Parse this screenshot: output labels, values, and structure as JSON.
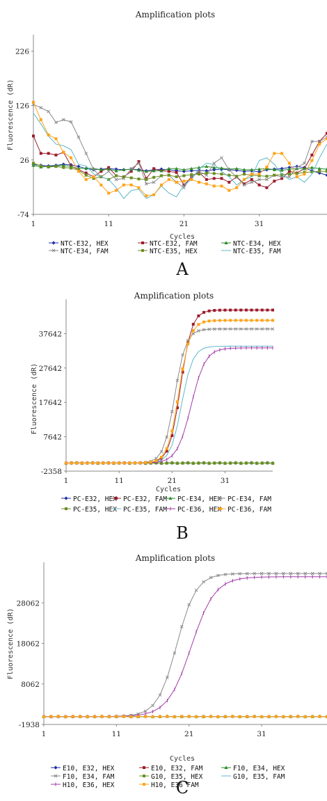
{
  "colors": {
    "blue": "#1f2ea8",
    "darkred": "#9b1c2c",
    "green": "#2e8b2e",
    "gray": "#8a8a8a",
    "olive": "#6b8e23",
    "teal": "#5fb8c9",
    "purple": "#a23ba7",
    "orange": "#ffa31a"
  },
  "chart_data": [
    {
      "type": "line",
      "title": "Amplification plots",
      "xlabel": "Cycles",
      "ylabel": "Fluorescence (dR)",
      "panel_label": "A",
      "xlim": [
        1,
        40
      ],
      "ylim": [
        -74,
        256
      ],
      "xticks": [
        1,
        11,
        21,
        31
      ],
      "yticks": [
        -74,
        26,
        126,
        226
      ],
      "series": [
        {
          "name": "NTC-E32, HEX",
          "color": "#1f2ea8",
          "marker": "diamond",
          "values": [
            18,
            16,
            15,
            16,
            18,
            17,
            14,
            10,
            8,
            9,
            10,
            9,
            8,
            9,
            8,
            6,
            8,
            9,
            8,
            6,
            5,
            6,
            7,
            6,
            8,
            9,
            8,
            7,
            5,
            6,
            4,
            8,
            9,
            10,
            12,
            14,
            12,
            6,
            2,
            -2
          ]
        },
        {
          "name": "NTC-E32, FAM",
          "color": "#9b1c2c",
          "marker": "square",
          "values": [
            70,
            38,
            38,
            35,
            40,
            15,
            8,
            2,
            -5,
            5,
            12,
            -3,
            -5,
            5,
            23,
            -8,
            10,
            6,
            5,
            3,
            -20,
            -5,
            3,
            -10,
            -8,
            -8,
            -15,
            -5,
            -18,
            -10,
            -20,
            -25,
            -13,
            -8,
            5,
            2,
            10,
            35,
            60,
            75
          ]
        },
        {
          "name": "NTC-E34, HEX",
          "color": "#2e8b2e",
          "marker": "triangle",
          "values": [
            16,
            13,
            14,
            15,
            16,
            14,
            10,
            11,
            10,
            8,
            9,
            6,
            8,
            9,
            7,
            5,
            6,
            6,
            10,
            10,
            8,
            10,
            12,
            14,
            12,
            11,
            9,
            10,
            8,
            8,
            9,
            10,
            8,
            7,
            9,
            10,
            10,
            12,
            10,
            9
          ]
        },
        {
          "name": "NTC-E34, FAM",
          "color": "#8a8a8a",
          "marker": "x",
          "values": [
            128,
            122,
            115,
            95,
            100,
            96,
            68,
            38,
            8,
            -5,
            5,
            -10,
            -8,
            10,
            20,
            -18,
            -15,
            -3,
            -2,
            -15,
            -25,
            -5,
            5,
            -2,
            20,
            30,
            8,
            -6,
            -20,
            -15,
            -10,
            -10,
            -2,
            -5,
            -5,
            12,
            20,
            60,
            60,
            68
          ]
        },
        {
          "name": "NTC-E35, HEX",
          "color": "#6b8e23",
          "marker": "square",
          "values": [
            20,
            15,
            13,
            14,
            12,
            11,
            7,
            -2,
            -8,
            -5,
            -10,
            -3,
            -5,
            -7,
            -9,
            -10,
            -6,
            -3,
            -2,
            -5,
            -3,
            -1,
            0,
            2,
            1,
            0,
            -2,
            -4,
            0,
            -2,
            -3,
            -4,
            -2,
            -1,
            0,
            1,
            3,
            4,
            5,
            5
          ]
        },
        {
          "name": "NTC-E35, FAM",
          "color": "#5fb8c9",
          "marker": "none",
          "values": [
            112,
            92,
            70,
            55,
            52,
            45,
            18,
            15,
            0,
            -5,
            -10,
            -25,
            -45,
            -30,
            -28,
            -45,
            -38,
            -22,
            -35,
            -42,
            -20,
            -10,
            10,
            20,
            18,
            5,
            -5,
            -20,
            -10,
            -5,
            25,
            30,
            18,
            0,
            -10,
            -5,
            -15,
            0,
            30,
            55
          ]
        },
        {
          "name": "NTC-E35, FAM (orange)",
          "legend": false,
          "color": "#ffa31a",
          "marker": "square",
          "values": [
            132,
            100,
            72,
            65,
            40,
            30,
            5,
            -10,
            -5,
            -20,
            -35,
            -30,
            -20,
            -20,
            -25,
            -40,
            -38,
            -20,
            -10,
            -15,
            -13,
            -10,
            -15,
            -18,
            -22,
            -22,
            -30,
            -25,
            -10,
            0,
            0,
            13,
            38,
            38,
            20,
            -5,
            0,
            25,
            55,
            65
          ]
        }
      ],
      "legend": [
        "NTC-E32, HEX",
        "NTC-E32, FAM",
        "NTC-E34, HEX",
        "NTC-E34, FAM",
        "NTC-E35, HEX",
        "NTC-E35, FAM"
      ],
      "legend_colors": [
        "#1f2ea8",
        "#9b1c2c",
        "#2e8b2e",
        "#8a8a8a",
        "#6b8e23",
        "#5fb8c9"
      ],
      "grid": false
    },
    {
      "type": "line",
      "title": "Amplification plots",
      "xlabel": "Cycles",
      "ylabel": "Fluorescence (dR)",
      "panel_label": "B",
      "xlim": [
        1,
        40
      ],
      "ylim": [
        -2358,
        47642
      ],
      "xticks": [
        1,
        11,
        21,
        31
      ],
      "yticks": [
        -2358,
        7642,
        17642,
        27642,
        37642
      ],
      "series": [
        {
          "name": "PC-E32, HEX",
          "color": "#1f2ea8",
          "marker": "diamond",
          "sigmoid": {
            "plateau": 0,
            "mid": 22,
            "k": 0.7
          }
        },
        {
          "name": "PC-E32, FAM",
          "color": "#9b1c2c",
          "marker": "square",
          "sigmoid": {
            "plateau": 44500,
            "mid": 22.6,
            "k": 0.95
          }
        },
        {
          "name": "PC-E34, HEX",
          "color": "#2e8b2e",
          "marker": "triangle",
          "sigmoid": {
            "plateau": 0,
            "mid": 22,
            "k": 0.7
          }
        },
        {
          "name": "PC-E34, FAM",
          "color": "#8a8a8a",
          "marker": "x",
          "sigmoid": {
            "plateau": 39000,
            "mid": 21.5,
            "k": 0.95
          }
        },
        {
          "name": "PC-E35, HEX",
          "color": "#6b8e23",
          "marker": "square",
          "sigmoid": {
            "plateau": 0,
            "mid": 22,
            "k": 0.7
          }
        },
        {
          "name": "PC-E35, FAM",
          "color": "#5fb8c9",
          "marker": "none",
          "sigmoid": {
            "plateau": 34000,
            "mid": 22.8,
            "k": 0.95
          }
        },
        {
          "name": "PC-E36, HEX",
          "color": "#a23ba7",
          "marker": "bar",
          "sigmoid": {
            "plateau": 33500,
            "mid": 24.6,
            "k": 0.75
          }
        },
        {
          "name": "PC-E36, FAM",
          "color": "#ffa31a",
          "marker": "square",
          "sigmoid": {
            "plateau": 41500,
            "mid": 22.3,
            "k": 0.95
          }
        }
      ],
      "legend": [
        "PC-E32, HEX",
        "PC-E32, FAM",
        "PC-E34, HEX",
        "PC-E34, FAM",
        "PC-E35, HEX",
        "PC-E35, FAM",
        "PC-E36, HEX",
        "PC-E36, FAM"
      ],
      "legend_colors": [
        "#1f2ea8",
        "#9b1c2c",
        "#2e8b2e",
        "#8a8a8a",
        "#6b8e23",
        "#5fb8c9",
        "#a23ba7",
        "#ffa31a"
      ],
      "grid": false
    },
    {
      "type": "line",
      "title": "Amplification plots",
      "xlabel": "Cycles",
      "ylabel": "Fluorescence (dR)",
      "panel_label": "C",
      "xlim": [
        1,
        40
      ],
      "ylim": [
        -1938,
        38062
      ],
      "xticks": [
        1,
        11,
        21,
        31
      ],
      "yticks": [
        -1938,
        8062,
        18062,
        28062
      ],
      "series": [
        {
          "name": "E10, E32, HEX",
          "color": "#1f2ea8",
          "marker": "diamond",
          "sigmoid": {
            "plateau": 0,
            "mid": 20,
            "k": 0.7
          }
        },
        {
          "name": "E10, E32, FAM",
          "color": "#9b1c2c",
          "marker": "square",
          "sigmoid": {
            "plateau": 0,
            "mid": 20,
            "k": 0.7
          }
        },
        {
          "name": "F10, E34, HEX",
          "color": "#2e8b2e",
          "marker": "triangle",
          "sigmoid": {
            "plateau": 0,
            "mid": 20,
            "k": 0.7
          }
        },
        {
          "name": "F10, E34, FAM",
          "color": "#8a8a8a",
          "marker": "x",
          "sigmoid": {
            "plateau": 35300,
            "mid": 19.3,
            "k": 0.75
          }
        },
        {
          "name": "G10, E35, HEX",
          "color": "#6b8e23",
          "marker": "square",
          "sigmoid": {
            "plateau": 0,
            "mid": 20,
            "k": 0.7
          }
        },
        {
          "name": "G10, E35, FAM",
          "color": "#5fb8c9",
          "marker": "none",
          "sigmoid": {
            "plateau": 0,
            "mid": 20,
            "k": 0.7
          }
        },
        {
          "name": "H10, E36, HEX",
          "color": "#a23ba7",
          "marker": "bar",
          "sigmoid": {
            "plateau": 34500,
            "mid": 21.3,
            "k": 0.62
          }
        },
        {
          "name": "H10, E36 FAM",
          "color": "#ffa31a",
          "marker": "square",
          "sigmoid": {
            "plateau": 0,
            "mid": 20,
            "k": 0.7
          }
        }
      ],
      "legend": [
        "E10, E32, HEX",
        "E10, E32, FAM",
        "F10, E34, HEX",
        "F10, E34, FAM",
        "G10, E35, HEX",
        "G10, E35, FAM",
        "H10, E36, HEX",
        "H10, E36 FAM"
      ],
      "legend_colors": [
        "#1f2ea8",
        "#9b1c2c",
        "#2e8b2e",
        "#8a8a8a",
        "#6b8e23",
        "#5fb8c9",
        "#a23ba7",
        "#ffa31a"
      ],
      "grid": false
    }
  ]
}
